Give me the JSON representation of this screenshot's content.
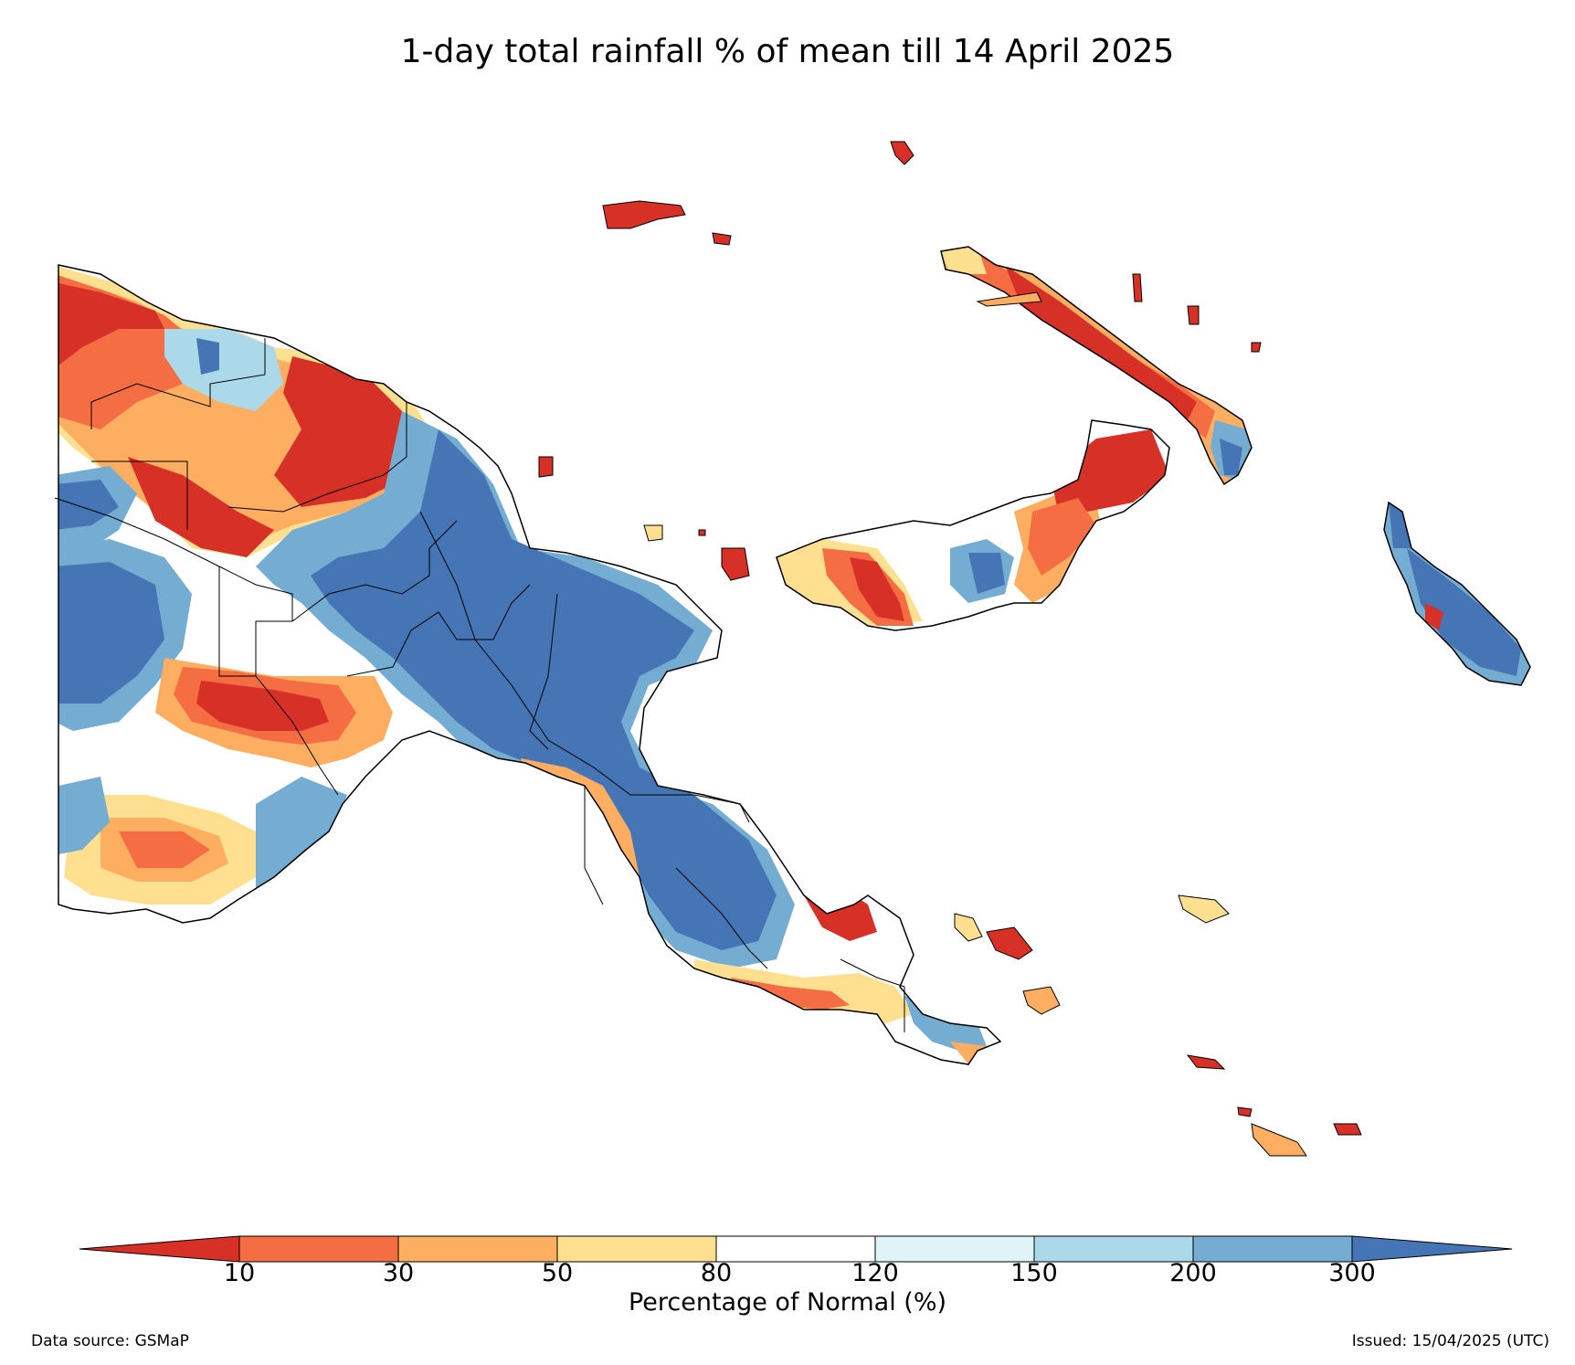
{
  "title": "1-day total rainfall % of mean till 14 April 2025",
  "colorbar": {
    "label": "Percentage of Normal (%)",
    "ticks": [
      "10",
      "30",
      "50",
      "80",
      "120",
      "150",
      "200",
      "300"
    ],
    "colors": [
      "#d73027",
      "#f46d43",
      "#fdae61",
      "#fee090",
      "#ffffff",
      "#e0f3f8",
      "#abd9e9",
      "#74add1",
      "#4575b4"
    ]
  },
  "footer": {
    "source": "Data source: GSMaP",
    "issued": "Issued: 15/04/2025 (UTC)"
  },
  "legend_icons": [
    "map-region-icon",
    "colorbar-icon"
  ]
}
